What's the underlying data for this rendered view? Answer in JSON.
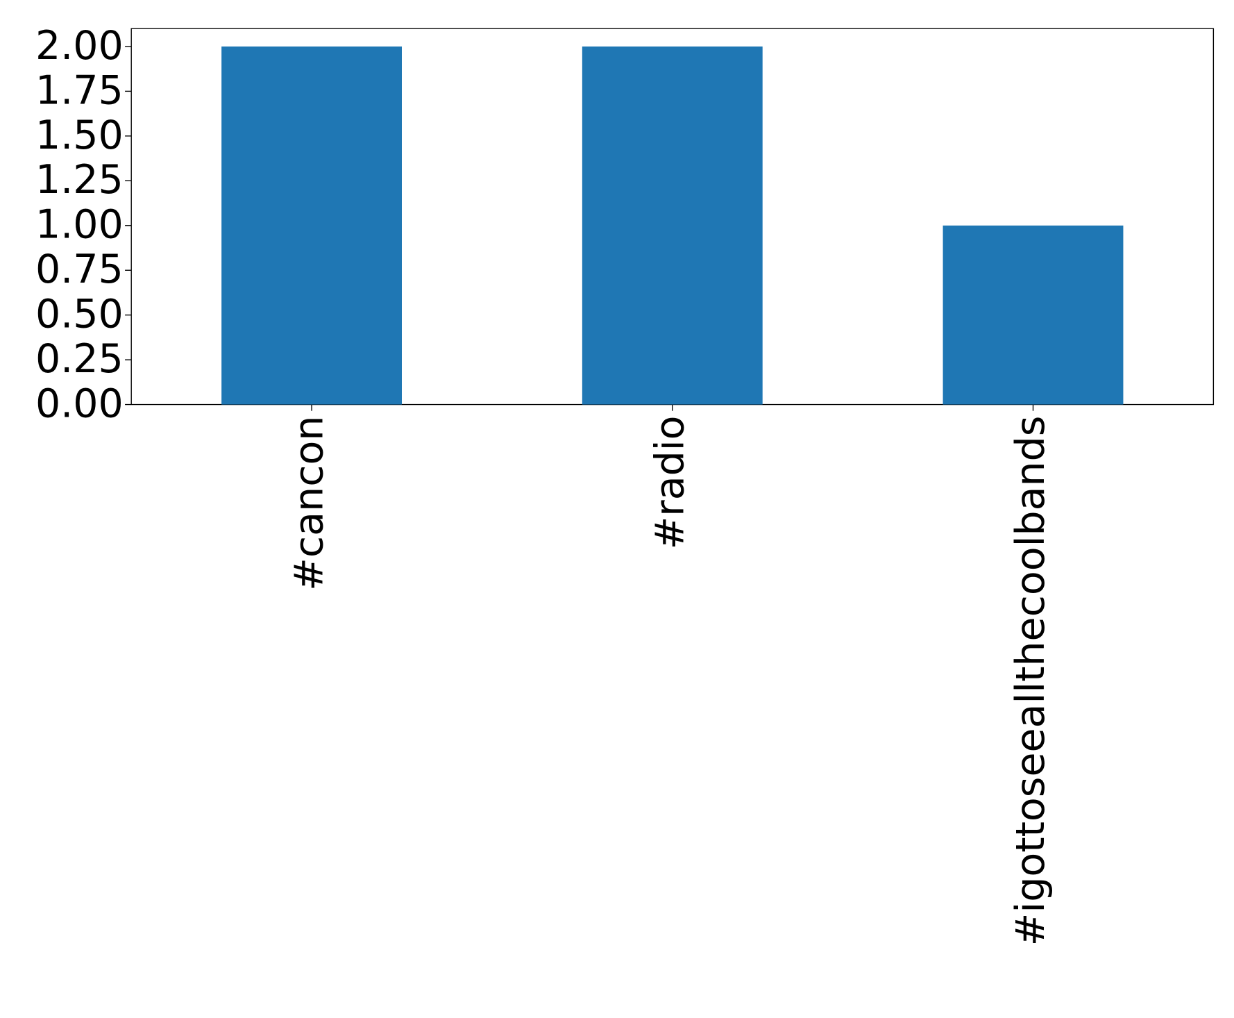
{
  "chart_data": {
    "type": "bar",
    "categories": [
      "#cancon",
      "#radio",
      "#igottoseeallthecoolbands"
    ],
    "values": [
      2,
      2,
      1
    ],
    "color": "#1f77b4",
    "ylim": [
      0,
      2.1
    ],
    "yticks": [
      {
        "value": 0,
        "label": "0.00"
      },
      {
        "value": 0.25,
        "label": "0.25"
      },
      {
        "value": 0.5,
        "label": "0.50"
      },
      {
        "value": 0.75,
        "label": "0.75"
      },
      {
        "value": 1,
        "label": "1.00"
      },
      {
        "value": 1.25,
        "label": "1.25"
      },
      {
        "value": 1.5,
        "label": "1.50"
      },
      {
        "value": 1.75,
        "label": "1.75"
      },
      {
        "value": 2,
        "label": "2.00"
      }
    ],
    "grid": false
  }
}
